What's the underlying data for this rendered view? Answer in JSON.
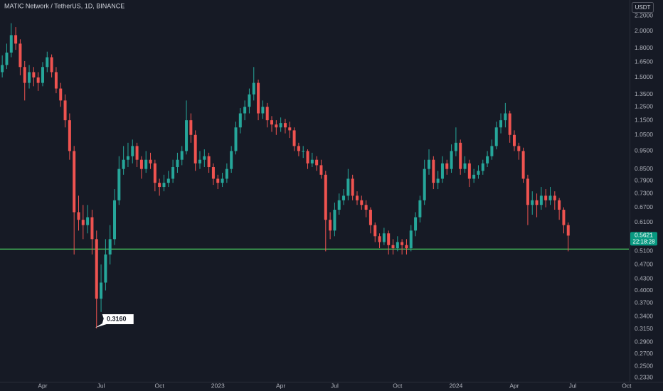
{
  "chart_data": {
    "type": "candlestick",
    "title": "MATIC Network / TetherUS, 1D, BINANCE",
    "currency": "USDT",
    "log_scale": true,
    "grid": false,
    "colors": {
      "up": "#26a69a",
      "down": "#ef5350"
    },
    "ylim": [
      0.227,
      2.425
    ],
    "yticks": [
      {
        "value": 2.2,
        "label": "2.2000"
      },
      {
        "value": 2.0,
        "label": "2.0000"
      },
      {
        "value": 1.8,
        "label": "1.8000"
      },
      {
        "value": 1.65,
        "label": "1.6500"
      },
      {
        "value": 1.5,
        "label": "1.5000"
      },
      {
        "value": 1.35,
        "label": "1.3500"
      },
      {
        "value": 1.25,
        "label": "1.2500"
      },
      {
        "value": 1.15,
        "label": "1.1500"
      },
      {
        "value": 1.05,
        "label": "1.0500"
      },
      {
        "value": 0.95,
        "label": "0.9500"
      },
      {
        "value": 0.85,
        "label": "0.8500"
      },
      {
        "value": 0.79,
        "label": "0.7900"
      },
      {
        "value": 0.73,
        "label": "0.7300"
      },
      {
        "value": 0.67,
        "label": "0.6700"
      },
      {
        "value": 0.61,
        "label": "0.6100"
      },
      {
        "value": 0.51,
        "label": "0.5100"
      },
      {
        "value": 0.47,
        "label": "0.4700"
      },
      {
        "value": 0.43,
        "label": "0.4300"
      },
      {
        "value": 0.4,
        "label": "0.4000"
      },
      {
        "value": 0.37,
        "label": "0.3700"
      },
      {
        "value": 0.34,
        "label": "0.3400"
      },
      {
        "value": 0.315,
        "label": "0.3150"
      },
      {
        "value": 0.29,
        "label": "0.2900"
      },
      {
        "value": 0.27,
        "label": "0.2700"
      },
      {
        "value": 0.25,
        "label": "0.2500"
      },
      {
        "value": 0.233,
        "label": "0.2330"
      }
    ],
    "last_price": 0.5621,
    "countdown": "22:18:28",
    "annotation": {
      "value": 0.316,
      "label": "0.3160"
    },
    "hline": {
      "value": 0.517,
      "color": "#4cd964"
    },
    "categories": [
      null,
      null,
      null,
      null,
      null,
      null,
      null,
      null,
      null,
      "Apr",
      null,
      null,
      null,
      null,
      null,
      null,
      null,
      null,
      null,
      null,
      null,
      null,
      "Jul",
      null,
      null,
      null,
      null,
      null,
      null,
      null,
      null,
      null,
      null,
      null,
      null,
      "Oct",
      null,
      null,
      null,
      null,
      null,
      null,
      null,
      null,
      null,
      null,
      null,
      null,
      "2023",
      null,
      null,
      null,
      null,
      null,
      null,
      null,
      null,
      null,
      null,
      null,
      null,
      null,
      "Apr",
      null,
      null,
      null,
      null,
      null,
      null,
      null,
      null,
      null,
      null,
      null,
      "Jul",
      null,
      null,
      null,
      null,
      null,
      null,
      null,
      null,
      null,
      null,
      null,
      null,
      null,
      "Oct",
      null,
      null,
      null,
      null,
      null,
      null,
      null,
      null,
      null,
      null,
      null,
      null,
      "2024",
      null,
      null,
      null,
      null,
      null,
      null,
      null,
      null,
      null,
      null,
      null,
      null,
      "Apr",
      null,
      null,
      null,
      null,
      null,
      null,
      null,
      null,
      null,
      null,
      null,
      null,
      "Jul",
      null,
      null,
      null,
      null,
      null,
      null,
      null,
      null,
      null,
      null,
      null,
      "Oct"
    ],
    "ohlc": [
      [
        1.55,
        1.72,
        1.5,
        1.62
      ],
      [
        1.62,
        1.85,
        1.58,
        1.75
      ],
      [
        1.75,
        2.1,
        1.7,
        1.95
      ],
      [
        1.95,
        2.05,
        1.78,
        1.85
      ],
      [
        1.85,
        1.9,
        1.52,
        1.6
      ],
      [
        1.6,
        1.66,
        1.3,
        1.45
      ],
      [
        1.45,
        1.62,
        1.4,
        1.55
      ],
      [
        1.55,
        1.6,
        1.42,
        1.5
      ],
      [
        1.5,
        1.55,
        1.38,
        1.45
      ],
      [
        1.45,
        1.65,
        1.42,
        1.6
      ],
      [
        1.6,
        1.76,
        1.55,
        1.7
      ],
      [
        1.7,
        1.73,
        1.5,
        1.55
      ],
      [
        1.55,
        1.6,
        1.36,
        1.4
      ],
      [
        1.4,
        1.45,
        1.25,
        1.3
      ],
      [
        1.3,
        1.35,
        1.1,
        1.15
      ],
      [
        1.15,
        1.2,
        0.9,
        0.95
      ],
      [
        0.95,
        0.98,
        0.5,
        0.65
      ],
      [
        0.65,
        0.72,
        0.58,
        0.62
      ],
      [
        0.62,
        0.68,
        0.55,
        0.6
      ],
      [
        0.6,
        0.68,
        0.57,
        0.63
      ],
      [
        0.63,
        0.66,
        0.5,
        0.55
      ],
      [
        0.55,
        0.58,
        0.316,
        0.38
      ],
      [
        0.38,
        0.47,
        0.35,
        0.42
      ],
      [
        0.42,
        0.55,
        0.4,
        0.5
      ],
      [
        0.5,
        0.6,
        0.47,
        0.55
      ],
      [
        0.55,
        0.75,
        0.53,
        0.7
      ],
      [
        0.7,
        0.92,
        0.68,
        0.85
      ],
      [
        0.85,
        0.98,
        0.82,
        0.9
      ],
      [
        0.9,
        1.0,
        0.86,
        0.92
      ],
      [
        0.92,
        1.02,
        0.88,
        0.98
      ],
      [
        0.98,
        1.0,
        0.86,
        0.9
      ],
      [
        0.9,
        0.92,
        0.8,
        0.85
      ],
      [
        0.85,
        0.95,
        0.83,
        0.9
      ],
      [
        0.9,
        0.94,
        0.85,
        0.88
      ],
      [
        0.88,
        0.9,
        0.74,
        0.78
      ],
      [
        0.78,
        0.8,
        0.72,
        0.76
      ],
      [
        0.76,
        0.82,
        0.74,
        0.78
      ],
      [
        0.78,
        0.84,
        0.76,
        0.8
      ],
      [
        0.8,
        0.9,
        0.78,
        0.86
      ],
      [
        0.86,
        0.94,
        0.83,
        0.9
      ],
      [
        0.9,
        0.98,
        0.87,
        0.95
      ],
      [
        0.95,
        1.3,
        0.93,
        1.15
      ],
      [
        1.15,
        1.2,
        1.0,
        1.05
      ],
      [
        1.05,
        1.08,
        0.84,
        0.88
      ],
      [
        0.88,
        0.95,
        0.85,
        0.9
      ],
      [
        0.9,
        0.96,
        0.86,
        0.92
      ],
      [
        0.92,
        0.94,
        0.83,
        0.86
      ],
      [
        0.86,
        0.88,
        0.77,
        0.8
      ],
      [
        0.8,
        0.82,
        0.75,
        0.78
      ],
      [
        0.78,
        0.83,
        0.76,
        0.8
      ],
      [
        0.8,
        0.88,
        0.78,
        0.85
      ],
      [
        0.85,
        0.98,
        0.83,
        0.95
      ],
      [
        0.95,
        1.14,
        0.93,
        1.1
      ],
      [
        1.1,
        1.24,
        1.06,
        1.2
      ],
      [
        1.2,
        1.3,
        1.15,
        1.25
      ],
      [
        1.25,
        1.4,
        1.2,
        1.35
      ],
      [
        1.35,
        1.6,
        1.3,
        1.45
      ],
      [
        1.45,
        1.48,
        1.15,
        1.2
      ],
      [
        1.2,
        1.3,
        1.16,
        1.25
      ],
      [
        1.25,
        1.28,
        1.1,
        1.15
      ],
      [
        1.15,
        1.18,
        1.07,
        1.12
      ],
      [
        1.12,
        1.15,
        1.05,
        1.1
      ],
      [
        1.1,
        1.17,
        1.07,
        1.13
      ],
      [
        1.13,
        1.16,
        1.06,
        1.1
      ],
      [
        1.1,
        1.14,
        1.03,
        1.08
      ],
      [
        1.08,
        1.1,
        0.95,
        0.98
      ],
      [
        0.98,
        1.0,
        0.92,
        0.95
      ],
      [
        0.95,
        0.98,
        0.91,
        0.95
      ],
      [
        0.95,
        0.96,
        0.85,
        0.88
      ],
      [
        0.88,
        0.94,
        0.86,
        0.9
      ],
      [
        0.9,
        0.92,
        0.84,
        0.87
      ],
      [
        0.87,
        0.9,
        0.8,
        0.82
      ],
      [
        0.82,
        0.84,
        0.51,
        0.62
      ],
      [
        0.62,
        0.65,
        0.55,
        0.58
      ],
      [
        0.58,
        0.69,
        0.56,
        0.66
      ],
      [
        0.66,
        0.73,
        0.64,
        0.7
      ],
      [
        0.7,
        0.75,
        0.68,
        0.72
      ],
      [
        0.72,
        0.85,
        0.7,
        0.8
      ],
      [
        0.8,
        0.82,
        0.7,
        0.72
      ],
      [
        0.72,
        0.74,
        0.68,
        0.7
      ],
      [
        0.7,
        0.72,
        0.66,
        0.68
      ],
      [
        0.68,
        0.7,
        0.63,
        0.66
      ],
      [
        0.66,
        0.67,
        0.57,
        0.6
      ],
      [
        0.6,
        0.61,
        0.54,
        0.56
      ],
      [
        0.56,
        0.57,
        0.52,
        0.54
      ],
      [
        0.54,
        0.59,
        0.53,
        0.57
      ],
      [
        0.57,
        0.58,
        0.5,
        0.53
      ],
      [
        0.53,
        0.55,
        0.5,
        0.52
      ],
      [
        0.52,
        0.56,
        0.51,
        0.54
      ],
      [
        0.54,
        0.55,
        0.5,
        0.53
      ],
      [
        0.53,
        0.55,
        0.5,
        0.52
      ],
      [
        0.52,
        0.6,
        0.51,
        0.58
      ],
      [
        0.58,
        0.65,
        0.56,
        0.63
      ],
      [
        0.63,
        0.72,
        0.61,
        0.7
      ],
      [
        0.7,
        0.9,
        0.68,
        0.85
      ],
      [
        0.85,
        0.96,
        0.82,
        0.9
      ],
      [
        0.9,
        0.92,
        0.75,
        0.78
      ],
      [
        0.78,
        0.84,
        0.75,
        0.8
      ],
      [
        0.8,
        0.92,
        0.78,
        0.88
      ],
      [
        0.88,
        0.9,
        0.82,
        0.85
      ],
      [
        0.85,
        0.99,
        0.83,
        0.95
      ],
      [
        0.95,
        1.1,
        0.92,
        1.0
      ],
      [
        1.0,
        1.02,
        0.82,
        0.85
      ],
      [
        0.85,
        0.92,
        0.83,
        0.88
      ],
      [
        0.88,
        0.9,
        0.76,
        0.8
      ],
      [
        0.8,
        0.85,
        0.78,
        0.82
      ],
      [
        0.82,
        0.87,
        0.8,
        0.84
      ],
      [
        0.84,
        0.9,
        0.82,
        0.88
      ],
      [
        0.88,
        0.95,
        0.86,
        0.92
      ],
      [
        0.92,
        1.02,
        0.9,
        0.98
      ],
      [
        0.98,
        1.14,
        0.96,
        1.1
      ],
      [
        1.1,
        1.2,
        1.06,
        1.15
      ],
      [
        1.15,
        1.28,
        1.1,
        1.2
      ],
      [
        1.2,
        1.22,
        1.0,
        1.05
      ],
      [
        1.05,
        1.08,
        0.95,
        0.98
      ],
      [
        0.98,
        1.0,
        0.9,
        0.95
      ],
      [
        0.95,
        0.97,
        0.78,
        0.8
      ],
      [
        0.8,
        0.82,
        0.6,
        0.68
      ],
      [
        0.68,
        0.74,
        0.64,
        0.7
      ],
      [
        0.7,
        0.73,
        0.63,
        0.68
      ],
      [
        0.68,
        0.76,
        0.66,
        0.72
      ],
      [
        0.72,
        0.75,
        0.67,
        0.7
      ],
      [
        0.7,
        0.76,
        0.68,
        0.72
      ],
      [
        0.72,
        0.74,
        0.66,
        0.7
      ],
      [
        0.7,
        0.71,
        0.62,
        0.66
      ],
      [
        0.66,
        0.67,
        0.57,
        0.6
      ],
      [
        0.6,
        0.61,
        0.51,
        0.5621
      ],
      null,
      null,
      null,
      null,
      null,
      null,
      null,
      null,
      null,
      null,
      null,
      null,
      null
    ]
  }
}
